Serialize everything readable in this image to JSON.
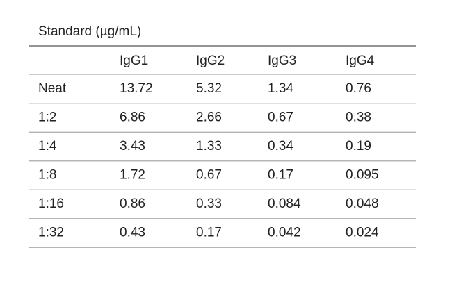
{
  "title": "Standard (µg/mL)",
  "table": {
    "header": [
      "IgG1",
      "IgG2",
      "IgG3",
      "IgG4"
    ],
    "rows": [
      {
        "label": "Neat",
        "values": [
          "13.72",
          "5.32",
          "1.34",
          "0.76"
        ]
      },
      {
        "label": "1:2",
        "values": [
          "6.86",
          "2.66",
          "0.67",
          "0.38"
        ]
      },
      {
        "label": "1:4",
        "values": [
          "3.43",
          "1.33",
          "0.34",
          "0.19"
        ]
      },
      {
        "label": "1:8",
        "values": [
          "1.72",
          "0.67",
          "0.17",
          "0.095"
        ]
      },
      {
        "label": "1:16",
        "values": [
          "0.86",
          "0.33",
          "0.084",
          "0.048"
        ]
      },
      {
        "label": "1:32",
        "values": [
          "0.43",
          "0.17",
          "0.042",
          "0.024"
        ]
      }
    ]
  }
}
